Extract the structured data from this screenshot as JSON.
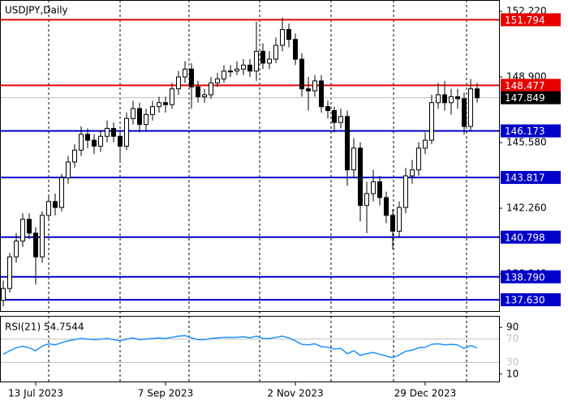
{
  "chart_data": [
    {
      "type": "candlestick",
      "title": "USDJPY,Daily",
      "categories": [
        null,
        null,
        null,
        null,
        null,
        "13 Jul 2023",
        null,
        null,
        null,
        null,
        null,
        null,
        null,
        null,
        null,
        null,
        null,
        null,
        null,
        null,
        null,
        null,
        null,
        null,
        null,
        "7 Sep 2023",
        null,
        null,
        null,
        null,
        null,
        null,
        null,
        null,
        null,
        null,
        null,
        null,
        null,
        null,
        null,
        null,
        null,
        null,
        null,
        "2 Nov 2023",
        null,
        null,
        null,
        null,
        null,
        null,
        null,
        null,
        null,
        null,
        null,
        null,
        null,
        null,
        null,
        null,
        null,
        null,
        null,
        "29 Dec 2023",
        null,
        null,
        null,
        null,
        null,
        null,
        null,
        null
      ],
      "ohlc": [
        [
          137.6,
          138.6,
          137.3,
          138.2
        ],
        [
          138.2,
          140.0,
          138.0,
          139.8
        ],
        [
          139.8,
          141.0,
          139.5,
          140.6
        ],
        [
          140.6,
          142.0,
          140.3,
          141.7
        ],
        [
          141.7,
          142.0,
          140.7,
          141.0
        ],
        [
          141.0,
          141.3,
          138.4,
          139.8
        ],
        [
          139.8,
          142.1,
          139.5,
          141.9
        ],
        [
          141.9,
          142.9,
          141.6,
          142.6
        ],
        [
          142.6,
          143.0,
          141.9,
          142.3
        ],
        [
          142.3,
          144.0,
          142.1,
          143.8
        ],
        [
          143.8,
          144.9,
          143.5,
          144.6
        ],
        [
          144.6,
          145.5,
          144.3,
          145.2
        ],
        [
          145.2,
          146.4,
          144.9,
          146.0
        ],
        [
          146.0,
          146.3,
          145.3,
          145.7
        ],
        [
          145.7,
          146.0,
          145.0,
          145.4
        ],
        [
          145.4,
          146.2,
          145.1,
          145.9
        ],
        [
          145.9,
          146.7,
          145.6,
          146.3
        ],
        [
          146.3,
          146.6,
          145.6,
          145.9
        ],
        [
          145.9,
          146.2,
          144.6,
          145.4
        ],
        [
          145.4,
          147.1,
          145.2,
          146.8
        ],
        [
          146.8,
          147.7,
          146.5,
          147.3
        ],
        [
          147.3,
          147.6,
          146.1,
          146.5
        ],
        [
          146.5,
          147.3,
          146.2,
          147.0
        ],
        [
          147.0,
          147.7,
          146.7,
          147.4
        ],
        [
          147.4,
          147.9,
          147.1,
          147.6
        ],
        [
          147.6,
          147.9,
          147.1,
          147.5
        ],
        [
          147.5,
          148.6,
          147.3,
          148.3
        ],
        [
          148.3,
          149.2,
          148.0,
          148.9
        ],
        [
          148.9,
          149.7,
          148.6,
          149.3
        ],
        [
          149.3,
          149.6,
          147.3,
          148.4
        ],
        [
          148.4,
          148.7,
          147.6,
          147.9
        ],
        [
          147.9,
          148.3,
          147.6,
          148.0
        ],
        [
          148.0,
          148.9,
          147.8,
          148.6
        ],
        [
          148.6,
          149.1,
          148.4,
          148.8
        ],
        [
          148.8,
          149.5,
          148.6,
          149.2
        ],
        [
          149.2,
          149.5,
          148.9,
          149.2
        ],
        [
          149.2,
          149.7,
          149.0,
          149.3
        ],
        [
          149.3,
          149.8,
          149.0,
          149.5
        ],
        [
          149.5,
          149.8,
          148.9,
          149.2
        ],
        [
          149.2,
          151.7,
          148.7,
          150.2
        ],
        [
          150.2,
          150.6,
          149.3,
          149.6
        ],
        [
          149.6,
          150.2,
          149.3,
          149.8
        ],
        [
          149.8,
          150.9,
          149.6,
          150.5
        ],
        [
          150.5,
          151.9,
          150.2,
          151.3
        ],
        [
          151.3,
          151.6,
          150.4,
          150.8
        ],
        [
          150.8,
          151.1,
          149.5,
          149.8
        ],
        [
          149.8,
          150.1,
          147.9,
          148.3
        ],
        [
          148.3,
          148.9,
          147.2,
          148.2
        ],
        [
          148.2,
          149.0,
          147.9,
          148.7
        ],
        [
          148.7,
          149.0,
          147.1,
          147.4
        ],
        [
          147.4,
          147.7,
          146.8,
          147.2
        ],
        [
          147.2,
          147.4,
          146.1,
          146.6
        ],
        [
          146.6,
          147.3,
          146.3,
          146.9
        ],
        [
          146.9,
          147.2,
          143.4,
          144.2
        ],
        [
          144.2,
          145.8,
          143.8,
          145.3
        ],
        [
          145.3,
          145.6,
          141.6,
          142.4
        ],
        [
          142.4,
          143.6,
          141.0,
          143.0
        ],
        [
          143.0,
          144.2,
          142.6,
          143.6
        ],
        [
          143.6,
          143.9,
          142.4,
          142.8
        ],
        [
          142.8,
          143.1,
          141.5,
          141.9
        ],
        [
          141.9,
          142.2,
          140.2,
          141.1
        ],
        [
          141.1,
          142.6,
          140.8,
          142.3
        ],
        [
          142.3,
          144.3,
          142.0,
          143.9
        ],
        [
          143.9,
          144.7,
          143.5,
          144.2
        ],
        [
          144.2,
          145.6,
          143.9,
          145.3
        ],
        [
          145.3,
          146.1,
          145.0,
          145.7
        ],
        [
          145.7,
          148.0,
          145.5,
          147.6
        ],
        [
          147.6,
          148.6,
          147.3,
          148.0
        ],
        [
          148.0,
          148.7,
          147.2,
          147.6
        ],
        [
          147.6,
          148.3,
          147.0,
          147.9
        ],
        [
          147.9,
          148.3,
          147.3,
          147.8
        ],
        [
          147.8,
          148.1,
          146.0,
          146.4
        ],
        [
          146.4,
          148.8,
          146.2,
          148.3
        ],
        [
          148.3,
          148.6,
          147.6,
          147.85
        ]
      ],
      "up_color": "#ffffff",
      "down_color": "#000000",
      "outline_color": "#000000",
      "ylim": [
        137.1,
        152.63
      ],
      "yticks": [
        {
          "value": 152.22,
          "label": "152.220"
        },
        {
          "value": 148.9,
          "label": "148.900"
        },
        {
          "value": 145.58,
          "label": "145.580"
        },
        {
          "value": 142.26,
          "label": "142.260"
        },
        {
          "value": 138.94,
          "label": "138.940"
        }
      ],
      "levels": [
        {
          "value": 151.794,
          "color": "#e60000"
        },
        {
          "value": 148.477,
          "color": "#e60000"
        },
        {
          "value": 146.173,
          "color": "#0000c8"
        },
        {
          "value": 143.817,
          "color": "#0000c8"
        },
        {
          "value": 140.798,
          "color": "#0000c8"
        },
        {
          "value": 138.79,
          "label": "138.790",
          "color": "#0000c8"
        },
        {
          "value": 137.63,
          "label": "137.630",
          "color": "#0000c8"
        }
      ],
      "current_price": {
        "value": 147.849,
        "color": "#000000"
      }
    },
    {
      "type": "line",
      "title": "RSI(21) 54.7544",
      "color": "#1e90ff",
      "values": [
        44,
        50,
        55,
        58,
        55,
        50,
        58,
        62,
        60,
        64,
        67,
        69,
        71,
        70,
        69,
        70,
        71,
        69,
        67,
        70,
        72,
        69,
        70,
        71,
        72,
        71,
        73,
        75,
        76,
        72,
        69,
        69,
        71,
        72,
        73,
        73,
        73,
        74,
        72,
        75,
        71,
        71,
        73,
        75,
        72,
        67,
        61,
        60,
        62,
        57,
        56,
        53,
        54,
        45,
        50,
        42,
        45,
        47,
        44,
        41,
        38,
        43,
        49,
        51,
        55,
        56,
        61,
        62,
        60,
        61,
        60,
        54,
        59,
        54.7544
      ],
      "ylim": [
        0,
        100
      ],
      "yticks": [
        90,
        10
      ],
      "levels": [
        70,
        30
      ]
    }
  ]
}
